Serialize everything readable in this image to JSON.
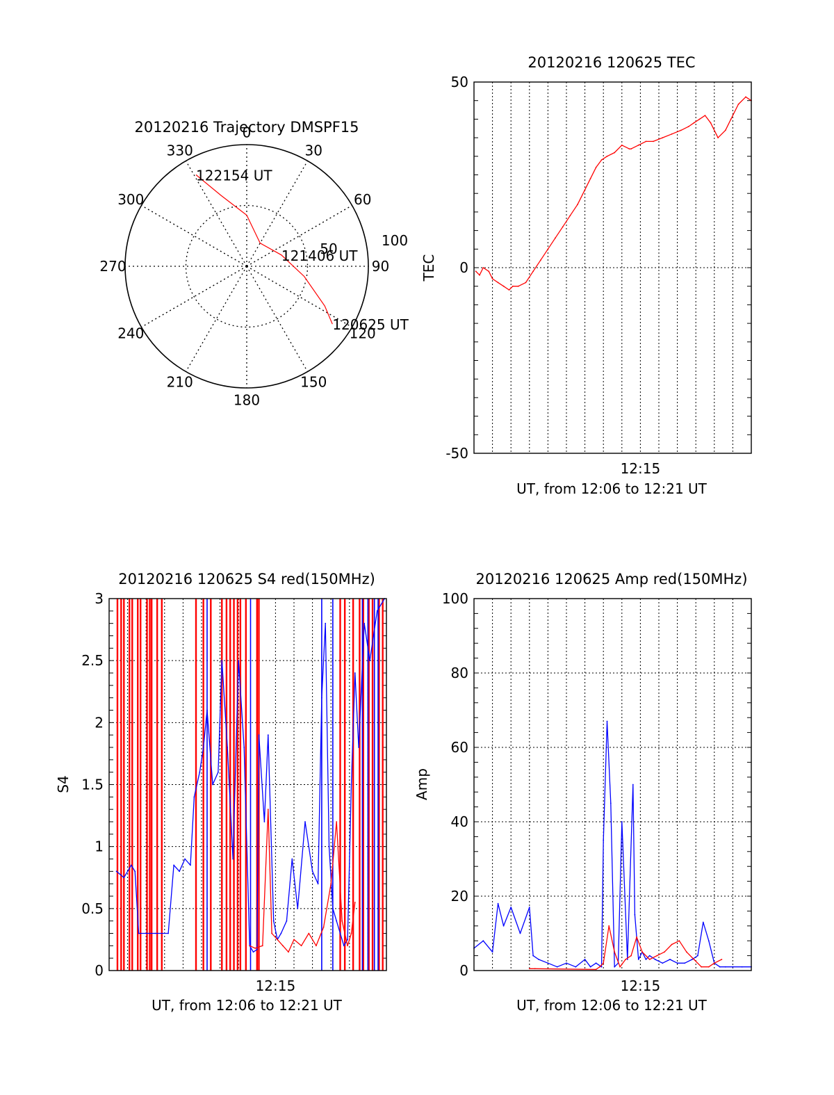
{
  "chart_data": [
    {
      "type": "polar",
      "title": "20120216 Trajectory DMSPF15",
      "angle_labels": [
        "0",
        "30",
        "60",
        "90",
        "120",
        "150",
        "180",
        "210",
        "240",
        "270",
        "300",
        "330"
      ],
      "radius_labels": [
        "50",
        "100"
      ],
      "rmax": 100,
      "grid": true,
      "track": {
        "color": "#ff0000",
        "points": [
          {
            "az": 331,
            "r": 86
          },
          {
            "az": 340,
            "r": 62
          },
          {
            "az": 0,
            "r": 42
          },
          {
            "az": 30,
            "r": 22
          },
          {
            "az": 72,
            "r": 30
          },
          {
            "az": 100,
            "r": 48
          },
          {
            "az": 117,
            "r": 72
          },
          {
            "az": 124,
            "r": 85
          }
        ]
      },
      "annotations": [
        {
          "text": "122154 UT",
          "az": 331,
          "r": 86
        },
        {
          "text": "121406 UT",
          "az": 72,
          "r": 30
        },
        {
          "text": "120625 UT",
          "az": 124,
          "r": 85
        }
      ]
    },
    {
      "type": "line",
      "title": "20120216 120625 TEC",
      "xlabel": "UT, from 12:06 to 12:21 UT",
      "ylabel": "TEC",
      "xlim": [
        0,
        15
      ],
      "ylim": [
        -50,
        50
      ],
      "xticks": [
        {
          "x": 9,
          "label": "12:15"
        }
      ],
      "yticks": [
        -50,
        0,
        50
      ],
      "grid": true,
      "series": [
        {
          "color": "#ff0000",
          "x": [
            0.1,
            0.3,
            0.5,
            0.8,
            1.0,
            1.3,
            1.6,
            1.9,
            2.1,
            2.4,
            2.8,
            3.2,
            3.6,
            4.0,
            4.4,
            4.8,
            5.2,
            5.6,
            6.0,
            6.3,
            6.6,
            6.9,
            7.2,
            7.6,
            8.0,
            8.4,
            8.5,
            8.9,
            9.3,
            9.7,
            10.2,
            10.7,
            11.2,
            11.6,
            11.9,
            12.2,
            12.5,
            12.8,
            13.2,
            13.6,
            13.9,
            14.3,
            14.7,
            15.0
          ],
          "y": [
            -1,
            -2,
            0,
            -1,
            -3,
            -4,
            -5,
            -6,
            -5,
            -5,
            -4,
            -1,
            2,
            5,
            8,
            11,
            14,
            17,
            21,
            24,
            27,
            29,
            30,
            31,
            33,
            32,
            32,
            33,
            34,
            34,
            35,
            36,
            37,
            38,
            39,
            40,
            41,
            39,
            35,
            37,
            40,
            44,
            46,
            45
          ]
        }
      ]
    },
    {
      "type": "line",
      "title": "20120216 120625 S4 red(150MHz)",
      "xlabel": "UT, from 12:06 to 12:21 UT",
      "ylabel": "S4",
      "xlim": [
        0,
        15
      ],
      "ylim": [
        0,
        3
      ],
      "xticks": [
        {
          "x": 9,
          "label": "12:15"
        }
      ],
      "yticks": [
        0,
        0.5,
        1,
        1.5,
        2,
        2.5,
        3
      ],
      "ytick_labels": [
        "0",
        "0.5",
        "1",
        "1.5",
        "2",
        "2.5",
        "3"
      ],
      "grid": true,
      "series": [
        {
          "color": "#0000ff",
          "x": [
            0.4,
            0.8,
            1.2,
            1.4,
            1.6,
            2.0,
            2.5,
            3.2,
            3.5,
            3.8,
            4.1,
            4.4,
            4.6,
            4.9,
            5.1,
            5.3,
            5.6,
            5.9,
            6.1,
            6.4,
            6.7,
            7.0,
            7.3,
            7.6,
            7.8,
            8.0,
            8.1,
            8.4,
            8.6,
            8.9,
            9.1,
            9.3,
            9.6,
            9.9,
            10.2,
            10.6,
            11.0,
            11.3,
            11.5,
            11.7,
            11.9,
            12.1,
            12.3,
            12.5,
            12.7,
            12.9,
            13.1,
            13.3,
            13.5,
            13.8,
            14.1,
            14.5,
            14.9
          ],
          "y": [
            0.8,
            0.75,
            0.85,
            0.8,
            0.3,
            0.3,
            0.3,
            0.3,
            0.85,
            0.8,
            0.9,
            0.85,
            1.4,
            1.6,
            1.8,
            2.1,
            1.5,
            1.6,
            2.5,
            1.8,
            0.9,
            2.5,
            1.8,
            0.2,
            0.15,
            0.17,
            1.9,
            1.2,
            1.9,
            0.4,
            0.25,
            0.3,
            0.4,
            0.9,
            0.5,
            1.2,
            0.8,
            0.7,
            2.2,
            2.8,
            1.0,
            0.5,
            0.4,
            0.3,
            0.2,
            0.25,
            1.5,
            2.4,
            1.8,
            2.8,
            2.5,
            2.9,
            3.0
          ]
        },
        {
          "color": "#ff0000",
          "x": [
            7.6,
            7.9,
            8.3,
            8.6,
            8.8,
            9.1,
            9.4,
            9.7,
            10.0,
            10.4,
            10.8,
            11.2,
            11.6,
            12.0,
            12.3,
            12.6,
            12.9,
            13.1,
            13.3
          ],
          "y": [
            0.2,
            0.18,
            0.2,
            1.3,
            0.3,
            0.25,
            0.2,
            0.15,
            0.25,
            0.2,
            0.3,
            0.2,
            0.35,
            0.7,
            1.2,
            0.4,
            0.2,
            0.3,
            0.55
          ]
        }
      ],
      "vertical_lines": {
        "color_red": "#ff0000",
        "color_blue": "#0000ff",
        "red_x": [
          0.45,
          0.65,
          0.8,
          1.1,
          1.25,
          1.55,
          1.7,
          2.05,
          2.2,
          2.3,
          2.6,
          2.85,
          4.7,
          5.1,
          5.5,
          6.1,
          6.35,
          6.55,
          6.75,
          6.95,
          7.1,
          7.4,
          8.0,
          8.1,
          12.5,
          12.75,
          13.2,
          13.55,
          13.75,
          14.05,
          14.25,
          14.6,
          14.8
        ],
        "blue_x": [
          5.3,
          7.65,
          11.5,
          12.1,
          13.7,
          14.0,
          14.35,
          14.55
        ]
      }
    },
    {
      "type": "line",
      "title": "20120216 120625 Amp red(150MHz)",
      "xlabel": "UT, from 12:06 to 12:21 UT",
      "ylabel": "Amp",
      "xlim": [
        0,
        15
      ],
      "ylim": [
        0,
        100
      ],
      "xticks": [
        {
          "x": 9,
          "label": "12:15"
        }
      ],
      "yticks": [
        0,
        20,
        40,
        60,
        80,
        100
      ],
      "grid": true,
      "series": [
        {
          "color": "#0000ff",
          "x": [
            0.0,
            0.5,
            1.0,
            1.3,
            1.6,
            2.0,
            2.5,
            3.0,
            3.2,
            3.5,
            4.0,
            4.5,
            5.0,
            5.5,
            6.0,
            6.3,
            6.6,
            6.9,
            7.0,
            7.2,
            7.4,
            7.6,
            7.8,
            8.0,
            8.3,
            8.6,
            8.7,
            8.9,
            9.1,
            9.3,
            9.5,
            9.8,
            10.2,
            10.6,
            11.0,
            11.4,
            11.8,
            12.1,
            12.4,
            12.7,
            13.0,
            13.3,
            13.6,
            14.0,
            14.5,
            15.0
          ],
          "y": [
            6,
            8,
            5,
            18,
            12,
            17,
            10,
            17,
            4,
            3,
            2,
            1,
            2,
            1,
            3,
            1,
            2,
            1,
            35,
            67,
            45,
            1,
            2,
            40,
            3,
            50,
            15,
            3,
            5,
            3,
            4,
            3,
            2,
            3,
            2,
            2,
            3,
            4,
            13,
            8,
            2,
            1,
            1,
            1,
            1,
            1
          ]
        },
        {
          "color": "#ff0000",
          "x": [
            3.0,
            3.3,
            6.6,
            6.8,
            7.0,
            7.3,
            7.6,
            7.9,
            8.2,
            8.5,
            8.8,
            9.1,
            9.5,
            9.9,
            10.3,
            10.7,
            11.1,
            11.5,
            11.9,
            12.3,
            12.7,
            13.0,
            13.4
          ],
          "y": [
            0.5,
            0.5,
            0.3,
            1,
            2,
            12,
            5,
            1,
            3,
            4,
            9,
            5,
            3,
            4,
            5,
            7,
            8,
            5,
            3,
            1,
            1,
            2,
            3
          ]
        }
      ]
    }
  ]
}
